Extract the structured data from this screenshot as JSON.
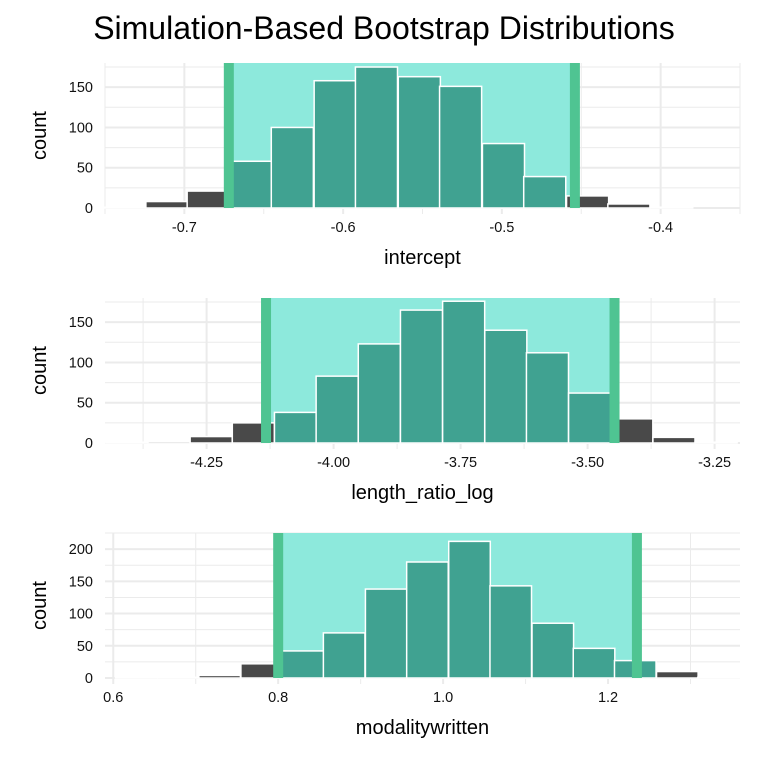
{
  "title": "Simulation-Based Bootstrap Distributions",
  "colors": {
    "ci_band": "#8de9dc",
    "ci_line": "#4fc492",
    "bar_outside": "#494949",
    "bar_inside": "#40a291",
    "bar_outline": "#ffffff",
    "grid": "#ebebeb"
  },
  "chart_data": [
    {
      "type": "bar",
      "xlabel": "intercept",
      "ylabel": "count",
      "xlim": [
        -0.75,
        -0.35
      ],
      "ylim": [
        0,
        180
      ],
      "xticks": [
        {
          "value": -0.7,
          "label": "-0.7"
        },
        {
          "value": -0.6,
          "label": "-0.6"
        },
        {
          "value": -0.5,
          "label": "-0.5"
        },
        {
          "value": -0.4,
          "label": "-0.4"
        }
      ],
      "yticks": [
        {
          "value": 0,
          "label": "0"
        },
        {
          "value": 50,
          "label": "50"
        },
        {
          "value": 100,
          "label": "100"
        },
        {
          "value": 150,
          "label": "150"
        }
      ],
      "ci": [
        -0.672,
        -0.454
      ],
      "bin_width": 0.0265,
      "bins": [
        {
          "x": -0.738,
          "count": 1
        },
        {
          "x": -0.711,
          "count": 8
        },
        {
          "x": -0.685,
          "count": 21
        },
        {
          "x": -0.658,
          "count": 58
        },
        {
          "x": -0.632,
          "count": 100
        },
        {
          "x": -0.605,
          "count": 158
        },
        {
          "x": -0.579,
          "count": 175
        },
        {
          "x": -0.552,
          "count": 163
        },
        {
          "x": -0.526,
          "count": 151
        },
        {
          "x": -0.499,
          "count": 80
        },
        {
          "x": -0.473,
          "count": 39
        },
        {
          "x": -0.446,
          "count": 15
        },
        {
          "x": -0.42,
          "count": 5
        },
        {
          "x": -0.393,
          "count": 1
        }
      ]
    },
    {
      "type": "bar",
      "xlabel": "length_ratio_log",
      "ylabel": "count",
      "xlim": [
        -4.45,
        -3.2
      ],
      "ylim": [
        0,
        180
      ],
      "xticks": [
        {
          "value": -4.25,
          "label": "-4.25"
        },
        {
          "value": -4.0,
          "label": "-4.00"
        },
        {
          "value": -3.75,
          "label": "-3.75"
        },
        {
          "value": -3.5,
          "label": "-3.50"
        },
        {
          "value": -3.25,
          "label": "-3.25"
        }
      ],
      "yticks": [
        {
          "value": 0,
          "label": "0"
        },
        {
          "value": 50,
          "label": "50"
        },
        {
          "value": 100,
          "label": "100"
        },
        {
          "value": 150,
          "label": "150"
        }
      ],
      "ci": [
        -4.133,
        -3.447
      ],
      "bin_width": 0.0828,
      "bins": [
        {
          "x": -4.407,
          "count": 1
        },
        {
          "x": -4.324,
          "count": 2
        },
        {
          "x": -4.241,
          "count": 8
        },
        {
          "x": -4.158,
          "count": 25
        },
        {
          "x": -4.075,
          "count": 38
        },
        {
          "x": -3.993,
          "count": 83
        },
        {
          "x": -3.91,
          "count": 123
        },
        {
          "x": -3.827,
          "count": 165
        },
        {
          "x": -3.744,
          "count": 176
        },
        {
          "x": -3.661,
          "count": 140
        },
        {
          "x": -3.579,
          "count": 112
        },
        {
          "x": -3.496,
          "count": 62
        },
        {
          "x": -3.413,
          "count": 30
        },
        {
          "x": -3.33,
          "count": 7
        },
        {
          "x": -3.247,
          "count": 1
        }
      ]
    },
    {
      "type": "bar",
      "xlabel": "modalitywritten",
      "ylabel": "count",
      "xlim": [
        0.59,
        1.36
      ],
      "ylim": [
        0,
        225
      ],
      "xticks": [
        {
          "value": 0.6,
          "label": "0.6"
        },
        {
          "value": 0.8,
          "label": "0.8"
        },
        {
          "value": 1.0,
          "label": "1.0"
        },
        {
          "value": 1.2,
          "label": "1.2"
        }
      ],
      "yticks": [
        {
          "value": 0,
          "label": "0"
        },
        {
          "value": 50,
          "label": "50"
        },
        {
          "value": 100,
          "label": "100"
        },
        {
          "value": 150,
          "label": "150"
        },
        {
          "value": 200,
          "label": "200"
        }
      ],
      "ci": [
        0.8,
        1.235
      ],
      "bin_width": 0.0504,
      "bins": [
        {
          "x": 0.628,
          "count": 1
        },
        {
          "x": 0.679,
          "count": 1
        },
        {
          "x": 0.729,
          "count": 4
        },
        {
          "x": 0.78,
          "count": 22
        },
        {
          "x": 0.83,
          "count": 42
        },
        {
          "x": 0.88,
          "count": 70
        },
        {
          "x": 0.931,
          "count": 138
        },
        {
          "x": 0.981,
          "count": 180
        },
        {
          "x": 1.032,
          "count": 212
        },
        {
          "x": 1.082,
          "count": 143
        },
        {
          "x": 1.133,
          "count": 85
        },
        {
          "x": 1.183,
          "count": 46
        },
        {
          "x": 1.233,
          "count": 27
        },
        {
          "x": 1.284,
          "count": 10
        },
        {
          "x": 1.334,
          "count": 1
        }
      ]
    }
  ]
}
